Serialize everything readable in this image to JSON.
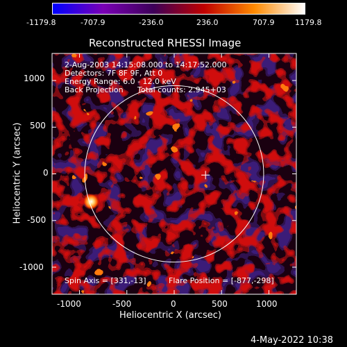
{
  "colorbar": {
    "ticks": [
      "-1179.8",
      "-707.9",
      "-236.0",
      "236.0",
      "707.9",
      "1179.8"
    ],
    "colors": [
      "#0000ff",
      "#7a00b5",
      "#3d0059",
      "#c00000",
      "#ff8a00",
      "#ffffff"
    ]
  },
  "title": "Reconstructed RHESSI Image",
  "info": {
    "line1": "2-Aug-2003 14:15:08.000 to 14:17:52.000",
    "line2": "Detectors: 7F 8F 9F, Att 0",
    "line3": "Energy Range: 6.0 - 12.0 keV",
    "line4_left": "Back Projection",
    "line4_right": "Total counts: 2.945+03",
    "spin_axis": "Spin Axis = [331,-13]",
    "flare_position": "Flare Position = [-877,-298]"
  },
  "axes": {
    "xlabel": "Heliocentric X (arcsec)",
    "ylabel": "Heliocentric Y (arcsec)",
    "xticks": [
      "-1000",
      "-500",
      "0",
      "500",
      "1000"
    ],
    "yticks": [
      "1000",
      "500",
      "0",
      "-500",
      "-1000"
    ],
    "xtick_values": [
      -1000,
      -500,
      0,
      500,
      1000
    ],
    "ytick_values": [
      1000,
      500,
      0,
      -500,
      -1000
    ],
    "xlim": [
      -1290,
      1290
    ],
    "ylim": [
      -1290,
      1290
    ]
  },
  "solar_disk": {
    "center": [
      0,
      0
    ],
    "radius_arcsec": 945
  },
  "crosshair_position": [
    331,
    -13
  ],
  "flare_source": [
    -877,
    -298
  ],
  "timestamp": "4-May-2022 10:38"
}
